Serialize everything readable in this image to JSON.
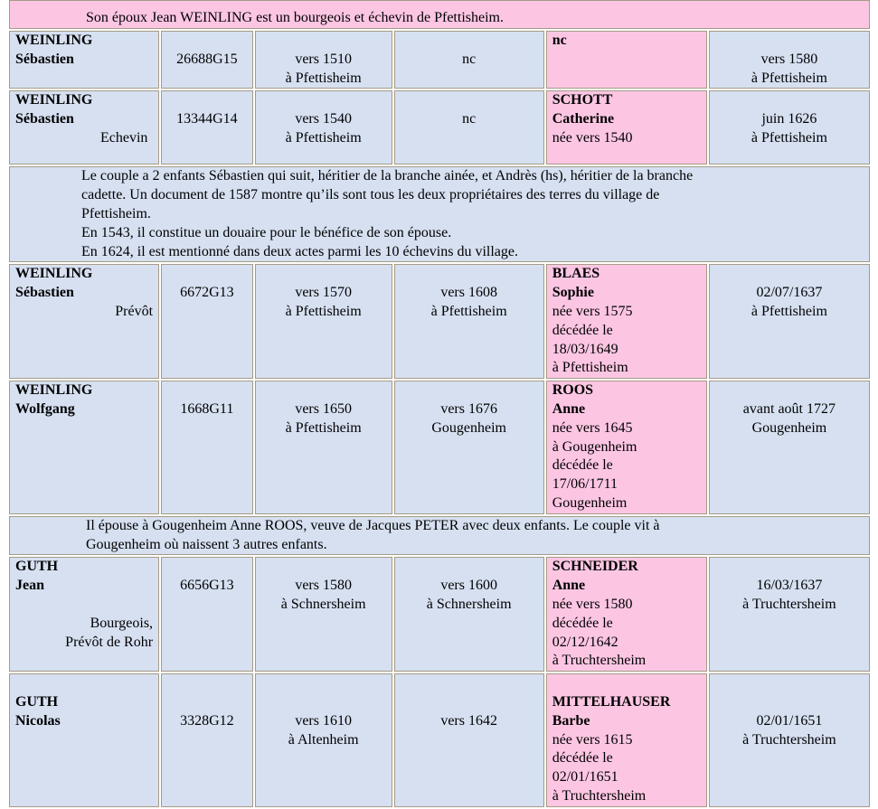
{
  "top_note": "Son époux Jean WEINLING est un bourgeois et échevin de Pfettisheim.",
  "rows": [
    {
      "surname": "WEINLING",
      "given": "Sébastien",
      "title": "",
      "sosa": "26688G15",
      "birth": "vers 1510\nà Pfettisheim",
      "marriage": "nc",
      "spouse_surname": "nc",
      "spouse_given": "",
      "spouse_details": "",
      "death": "\nvers 1580\nà Pfettisheim"
    },
    {
      "surname": "WEINLING",
      "given": "Sébastien",
      "title": "Echevin",
      "sosa": "13344G14",
      "birth": "vers 1540\nà Pfettisheim",
      "marriage": "nc",
      "spouse_surname": "SCHOTT",
      "spouse_given": "Catherine",
      "spouse_details": "née vers 1540",
      "death": "juin 1626\nà Pfettisheim"
    },
    {
      "surname": "WEINLING",
      "given": "Sébastien",
      "title": "Prévôt",
      "sosa": "6672G13",
      "birth": "vers 1570\nà Pfettisheim",
      "marriage": "vers 1608\nà Pfettisheim",
      "spouse_surname": "BLAES",
      "spouse_given": "Sophie",
      "spouse_details": "née vers 1575\ndécédée le\n18/03/1649\nà Pfettisheim",
      "death": "02/07/1637\nà Pfettisheim"
    },
    {
      "surname": "WEINLING",
      "given": "Wolfgang",
      "title": "",
      "sosa": "1668G11",
      "birth": "vers 1650\nà Pfettisheim",
      "marriage": "vers 1676\nGougenheim",
      "spouse_surname": "ROOS",
      "spouse_given": "Anne",
      "spouse_details": "née vers 1645\nà Gougenheim\ndécédée le\n17/06/1711\nGougenheim",
      "death": "avant août 1727\nGougenheim"
    },
    {
      "surname": "GUTH",
      "given": "Jean",
      "title": "Bourgeois,\nPrévôt de Rohr",
      "sosa": "6656G13",
      "birth": "vers 1580\nà Schnersheim",
      "marriage": "vers 1600\nà Schnersheim",
      "spouse_surname": "SCHNEIDER",
      "spouse_given": "Anne",
      "spouse_details": "née vers 1580\ndécédée le\n02/12/1642\nà Truchtersheim",
      "death": "16/03/1637\nà Truchtersheim"
    },
    {
      "surname": "GUTH",
      "given": "Nicolas",
      "title": "",
      "sosa": "3328G12",
      "birth": "vers 1610\nà Altenheim",
      "marriage": "vers 1642",
      "spouse_surname": "MITTELHAUSER",
      "spouse_given": "Barbe",
      "spouse_details": "née vers 1615\ndécédée le\n02/01/1651\nà Truchtersheim",
      "death": "02/01/1651\nà Truchtersheim"
    }
  ],
  "note_1": [
    "Le couple a 2 enfants Sébastien qui suit, héritier de la branche ainée, et Andrès (hs), héritier de la branche",
    "cadette. Un document de 1587 montre qu’ils sont tous les deux propriétaires des terres du village de",
    "Pfettisheim.",
    "En 1543, il constitue un douaire pour le bénéfice de son épouse.",
    "En 1624, il est mentionné dans deux actes parmi les 10 échevins du village."
  ],
  "note_2": [
    "Il épouse à Gougenheim Anne ROOS, veuve de Jacques PETER avec deux enfants. Le couple vit à",
    "Gougenheim où naissent 3 autres enfants."
  ]
}
